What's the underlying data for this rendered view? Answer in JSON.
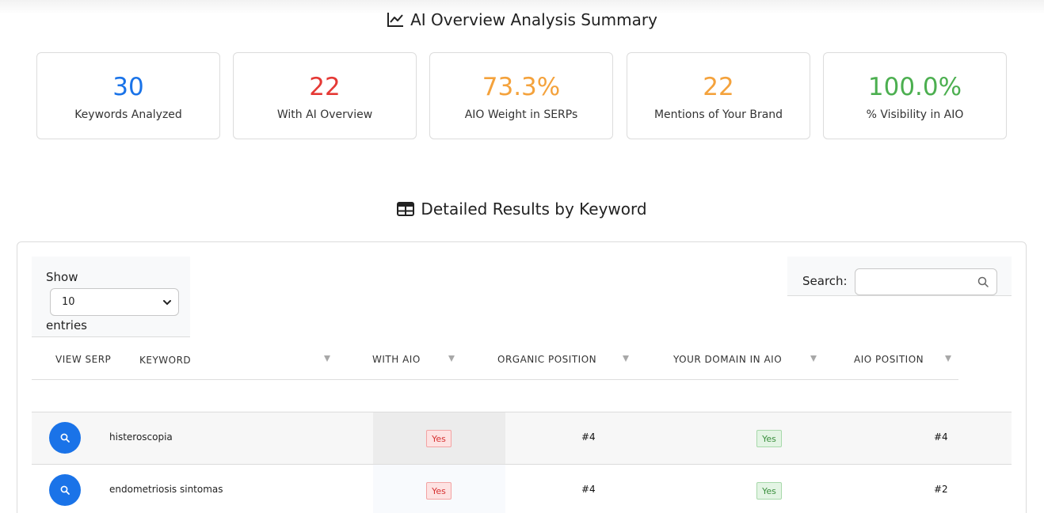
{
  "summary": {
    "title": "AI Overview Analysis Summary",
    "cards": [
      {
        "value": "30",
        "label": "Keywords Analyzed",
        "color": "#1a73e8"
      },
      {
        "value": "22",
        "label": "With AI Overview",
        "color": "#e53935"
      },
      {
        "value": "73.3%",
        "label": "AIO Weight in SERPs",
        "color": "#f4a23c"
      },
      {
        "value": "22",
        "label": "Mentions of Your Brand",
        "color": "#f4a23c"
      },
      {
        "value": "100.0%",
        "label": "% Visibility in AIO",
        "color": "#4caf50"
      }
    ]
  },
  "details": {
    "title": "Detailed Results by Keyword",
    "length": {
      "show": "Show",
      "selected": "10",
      "entries": "entries"
    },
    "search": {
      "label": "Search:",
      "placeholder": ""
    },
    "columns": [
      "VIEW SERP",
      "KEYWORD",
      "WITH AIO",
      "ORGANIC POSITION",
      "YOUR DOMAIN IN AIO",
      "AIO POSITION"
    ],
    "rows": [
      {
        "keyword": "histeroscopia",
        "with_aio": "Yes",
        "organic": "#4",
        "domain_in_aio": "Yes",
        "aio_position": "#4"
      },
      {
        "keyword": "endometriosis sintomas",
        "with_aio": "Yes",
        "organic": "#4",
        "domain_in_aio": "Yes",
        "aio_position": "#2"
      }
    ]
  }
}
